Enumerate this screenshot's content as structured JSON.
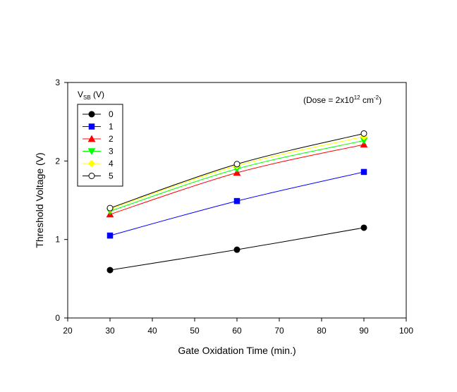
{
  "chart_data": {
    "type": "line",
    "xlabel": "Gate Oxidation Time (min.)",
    "ylabel": "Threshold Voltage (V)",
    "xlim": [
      20,
      100
    ],
    "ylim": [
      0,
      3
    ],
    "x_ticks": [
      "20",
      "30",
      "40",
      "50",
      "60",
      "70",
      "80",
      "90",
      "100"
    ],
    "y_ticks": [
      "0",
      "1",
      "2",
      "3"
    ],
    "grid": false,
    "legend": {
      "placement": "top-left",
      "title_main": "V",
      "title_sub": "SB",
      "title_unit": " (V)"
    },
    "annotation": {
      "prefix": "(Dose = 2x10",
      "exp1": "12",
      "mid": " cm",
      "exp2": "-2",
      "suffix": ")"
    },
    "x": [
      30,
      60,
      90
    ],
    "series": [
      {
        "name": "0",
        "values": [
          0.61,
          0.87,
          1.15
        ],
        "color": "#000000",
        "marker": "circle-filled"
      },
      {
        "name": "1",
        "values": [
          1.05,
          1.49,
          1.86
        ],
        "color": "#0000ff",
        "marker": "square"
      },
      {
        "name": "2",
        "values": [
          1.32,
          1.85,
          2.21
        ],
        "color": "#ff0000",
        "marker": "triangle-up"
      },
      {
        "name": "3",
        "values": [
          1.36,
          1.9,
          2.26
        ],
        "color": "#00ff00",
        "marker": "triangle-down"
      },
      {
        "name": "4",
        "values": [
          1.39,
          1.94,
          2.31
        ],
        "color": "#ffff00",
        "marker": "diamond"
      },
      {
        "name": "5",
        "values": [
          1.4,
          1.96,
          2.35
        ],
        "color": "#000000",
        "marker": "circle-open"
      }
    ]
  }
}
